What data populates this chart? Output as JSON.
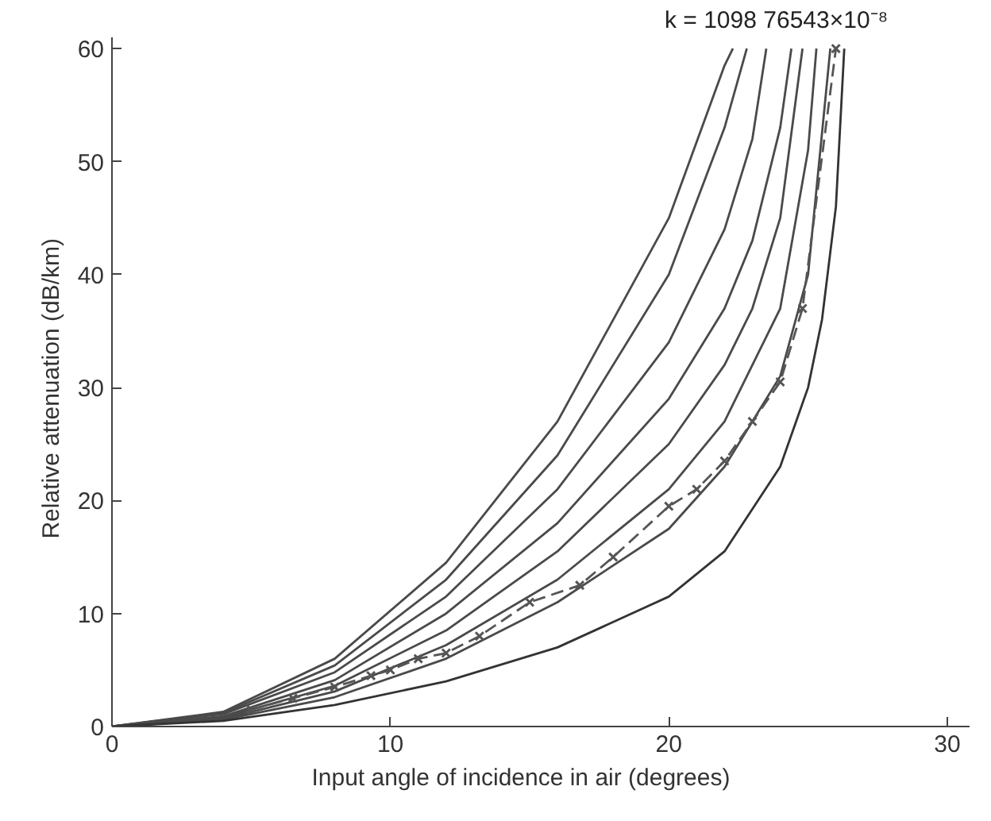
{
  "chart_data": {
    "type": "line",
    "xlabel": "Input  angle  of  incidence  in  air  (degrees)",
    "ylabel": "Relative  attenuation  (dB/km)",
    "xlim": [
      0,
      30.8
    ],
    "ylim": [
      0,
      61
    ],
    "xticks": [
      0,
      10,
      20,
      30
    ],
    "yticks": [
      0,
      10,
      20,
      30,
      40,
      50,
      60
    ],
    "grid": false,
    "marker": "none",
    "line_style": "solid",
    "annotations": [
      "k = 1098 76543×10⁻⁸"
    ],
    "series": [
      {
        "color": "#4a4a4a",
        "x": [
          0,
          4,
          8,
          12,
          16,
          20,
          22,
          22.3
        ],
        "values": [
          0,
          1.3,
          6,
          14.5,
          27,
          45,
          58.5,
          60
        ]
      },
      {
        "color": "#4a4a4a",
        "x": [
          0,
          4,
          8,
          12,
          16,
          20,
          22,
          22.8
        ],
        "values": [
          0,
          1.2,
          5.4,
          13,
          24,
          40,
          53,
          60
        ]
      },
      {
        "color": "#4a4a4a",
        "x": [
          0,
          4,
          8,
          12,
          16,
          20,
          22,
          23,
          23.5
        ],
        "values": [
          0,
          1.1,
          4.8,
          11.5,
          21,
          34,
          44,
          52,
          60
        ]
      },
      {
        "color": "#4a4a4a",
        "x": [
          0,
          4,
          8,
          12,
          16,
          20,
          22,
          23,
          24,
          24.4
        ],
        "values": [
          0,
          0.9,
          4.1,
          10,
          18,
          29,
          37,
          43,
          53,
          60
        ]
      },
      {
        "color": "#4a4a4a",
        "x": [
          0,
          4,
          8,
          12,
          16,
          20,
          22,
          23,
          24,
          24.8
        ],
        "values": [
          0,
          0.8,
          3.6,
          8.5,
          15.5,
          25,
          32,
          37,
          45,
          60
        ]
      },
      {
        "color": "#4a4a4a",
        "x": [
          0,
          4,
          8,
          12,
          16,
          20,
          22,
          24,
          25,
          25.3
        ],
        "values": [
          0,
          0.7,
          3.1,
          7.2,
          13,
          21,
          27,
          37,
          51,
          60
        ]
      },
      {
        "color": "#4a4a4a",
        "x": [
          0,
          4,
          8,
          12,
          16,
          20,
          22,
          24,
          25,
          25.8
        ],
        "values": [
          0,
          0.6,
          2.6,
          6,
          11,
          17.5,
          23,
          31,
          40,
          60
        ]
      },
      {
        "color": "#333333",
        "x": [
          0,
          4,
          8,
          12,
          16,
          20,
          22,
          24,
          25,
          25.5,
          26,
          26.3
        ],
        "values": [
          0,
          0.5,
          1.9,
          4,
          7,
          11.5,
          15.5,
          23,
          30,
          36,
          46,
          60
        ]
      },
      {
        "color": "#555555",
        "marker": "cross",
        "line_style": "dashed",
        "x": [
          5,
          6.5,
          8,
          9.3,
          10,
          11,
          12,
          13.2,
          15,
          16.8,
          18,
          20,
          21,
          22,
          23,
          24,
          24.8,
          26
        ],
        "values": [
          1.5,
          2.5,
          3.5,
          4.5,
          5,
          6,
          6.5,
          8,
          11,
          12.5,
          15,
          19.5,
          21,
          23.5,
          27,
          30.5,
          37,
          60
        ]
      }
    ]
  }
}
